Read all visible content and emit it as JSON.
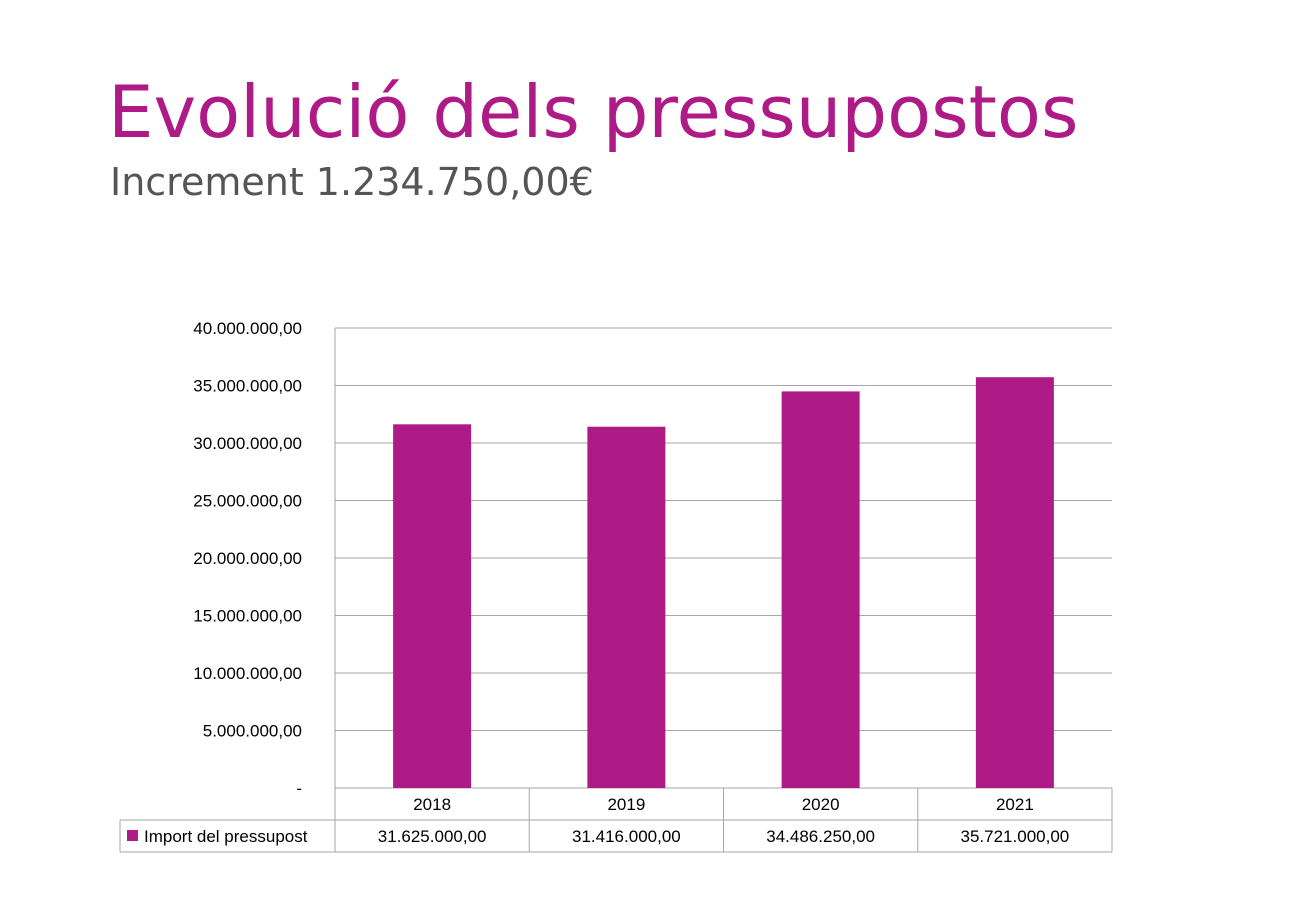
{
  "header": {
    "title": "Evolució dels pressupostos",
    "subtitle": "Increment  1.234.750,00€"
  },
  "chart_data": {
    "type": "bar",
    "categories": [
      "2018",
      "2019",
      "2020",
      "2021"
    ],
    "series": [
      {
        "name": "Import del pressupost",
        "values": [
          31625000,
          31416000,
          34486250,
          35721000
        ],
        "labels": [
          "31.625.000,00",
          "31.416.000,00",
          "34.486.250,00",
          "35.721.000,00"
        ]
      }
    ],
    "ylim": [
      0,
      40000000
    ],
    "yticks": [
      0,
      5000000,
      10000000,
      15000000,
      20000000,
      25000000,
      30000000,
      35000000,
      40000000
    ],
    "ytick_labels": [
      "-",
      "5.000.000,00",
      "10.000.000,00",
      "15.000.000,00",
      "20.000.000,00",
      "25.000.000,00",
      "30.000.000,00",
      "35.000.000,00",
      "40.000.000,00"
    ],
    "grid": true,
    "legend": "data-table",
    "bar_color": "#ae1a86"
  }
}
